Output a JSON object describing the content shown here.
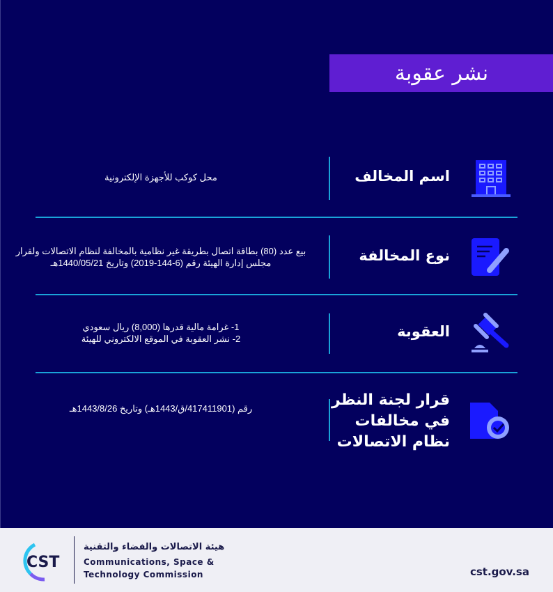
{
  "title": "نشر عقوبة",
  "rows": [
    {
      "icon": "building-icon",
      "label": "اسم المخالف",
      "value": "محل كوكب للأجهزة الإلكترونية"
    },
    {
      "icon": "document-pen-icon",
      "label": "نوع المخالفة",
      "value": "بيع عدد (80) بطاقة اتصال بطريقة غير نظامية بالمخالفة لنظام الاتصالات ولقرار مجلس إدارة الهيئة رقم (6-144-2019)  وتاريخ 1440/05/21هـ"
    },
    {
      "icon": "gavel-icon",
      "label": "العقوبة",
      "value_lines": [
        "1- غرامة مالية قدرها (8,000) ريال سعودي",
        "2- نشر العقوبة في الموقع الالكتروني للهيئة"
      ]
    },
    {
      "icon": "certified-document-icon",
      "label": "قرار لجنة النظر في مخالفات نظام الاتصالات",
      "value": "رقم (417411901/ق/1443هـ) وتاريخ 1443/8/26هـ"
    }
  ],
  "footer": {
    "logo_text": "CST",
    "org_ar": "هيئة الاتصالات والفضاء والتقنية",
    "org_en_1": "Communications, Space &",
    "org_en_2": "Technology Commission",
    "url": "cst.gov.sa"
  },
  "colors": {
    "background": "#03005e",
    "title_bar": "#5f1ed2",
    "divider": "#1aa3d9",
    "icon": "#1a1aff",
    "footer": "#efeff5"
  }
}
